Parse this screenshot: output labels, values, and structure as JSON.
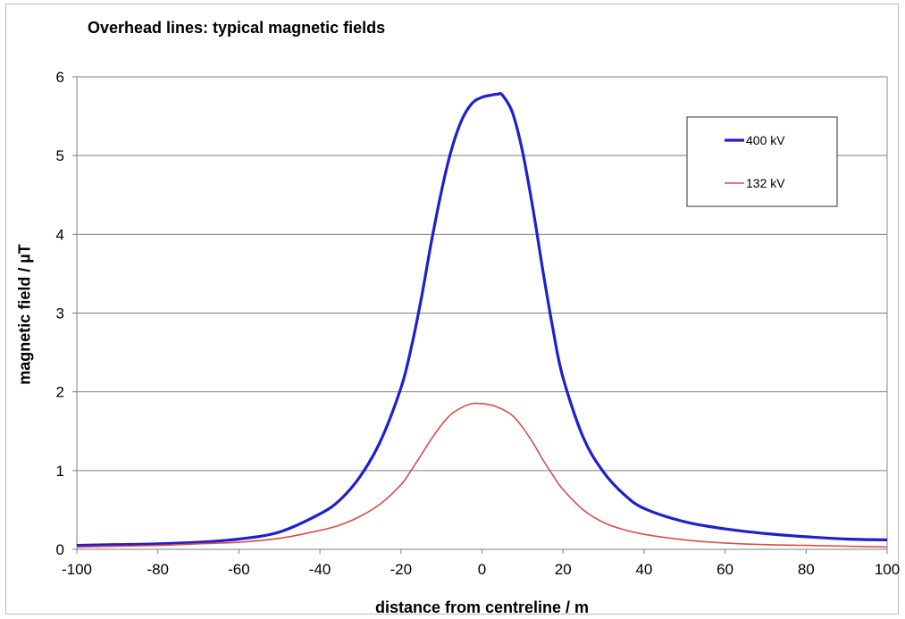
{
  "chart_data": {
    "type": "line",
    "title": "Overhead lines: typical magnetic fields",
    "xlabel": "distance from centreline / m",
    "ylabel": "magnetic field / µT",
    "xlim": [
      -100,
      100
    ],
    "ylim": [
      0,
      6
    ],
    "xticks": [
      -100,
      -80,
      -60,
      -40,
      -20,
      0,
      20,
      40,
      60,
      80,
      100
    ],
    "yticks": [
      0,
      1,
      2,
      3,
      4,
      5,
      6
    ],
    "grid": "horizontal",
    "legend_position": "top-right",
    "x": [
      -100,
      -90,
      -80,
      -70,
      -60,
      -50,
      -40,
      -35,
      -30,
      -25,
      -20,
      -17.5,
      -15,
      -12.5,
      -10,
      -7.5,
      -5,
      -2.5,
      0,
      2.5,
      4,
      5,
      7.5,
      10,
      12.5,
      15,
      17.5,
      20,
      25,
      30,
      35,
      40,
      50,
      60,
      70,
      80,
      90,
      100
    ],
    "series": [
      {
        "name": "400 kV",
        "color": "#1f1fcc",
        "values": [
          0.05,
          0.06,
          0.07,
          0.09,
          0.13,
          0.22,
          0.45,
          0.63,
          0.93,
          1.38,
          2.05,
          2.55,
          3.18,
          3.9,
          4.55,
          5.08,
          5.45,
          5.66,
          5.74,
          5.77,
          5.78,
          5.77,
          5.55,
          5.05,
          4.35,
          3.55,
          2.8,
          2.18,
          1.42,
          0.98,
          0.7,
          0.52,
          0.35,
          0.26,
          0.2,
          0.16,
          0.13,
          0.12
        ]
      },
      {
        "name": "132 kV",
        "color": "#d94c4c",
        "values": [
          0.03,
          0.04,
          0.05,
          0.07,
          0.09,
          0.14,
          0.24,
          0.31,
          0.42,
          0.58,
          0.82,
          1.0,
          1.2,
          1.4,
          1.58,
          1.72,
          1.8,
          1.85,
          1.85,
          1.83,
          1.8,
          1.78,
          1.7,
          1.55,
          1.36,
          1.14,
          0.94,
          0.76,
          0.5,
          0.34,
          0.25,
          0.19,
          0.12,
          0.08,
          0.06,
          0.05,
          0.04,
          0.03
        ]
      }
    ]
  }
}
